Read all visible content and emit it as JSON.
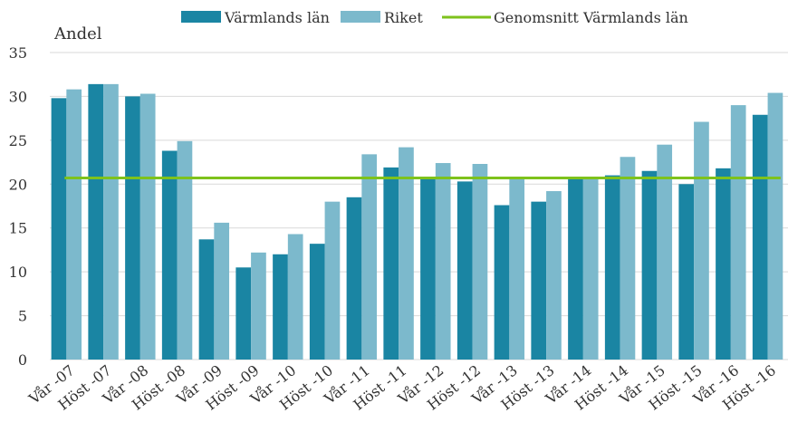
{
  "chart_data": {
    "type": "bar",
    "y_label": "Andel",
    "categories": [
      "Vår -07",
      "Höst -07",
      "Vår -08",
      "Höst -08",
      "Vår -09",
      "Höst -09",
      "Vår -10",
      "Höst -10",
      "Vår -11",
      "Höst -11",
      "Vår -12",
      "Höst -12",
      "Vår -13",
      "Höst -13",
      "Vår -14",
      "Höst -14",
      "Vår -15",
      "Höst -15",
      "Vår -16",
      "Höst -16"
    ],
    "series": [
      {
        "name": "Värmlands län",
        "color": "#1a85a3",
        "values": [
          29.8,
          31.4,
          30.0,
          23.8,
          13.7,
          10.5,
          12.0,
          13.2,
          18.5,
          21.9,
          20.8,
          20.3,
          17.6,
          18.0,
          20.7,
          21.0,
          21.5,
          20.0,
          21.8,
          27.9
        ]
      },
      {
        "name": "Riket",
        "color": "#7cb9cc",
        "values": [
          30.8,
          31.4,
          30.3,
          24.9,
          15.6,
          12.2,
          14.3,
          18.0,
          23.4,
          24.2,
          22.4,
          22.3,
          20.8,
          19.2,
          20.7,
          23.1,
          24.5,
          27.1,
          29.0,
          30.4
        ]
      }
    ],
    "average": {
      "name": "Genomsnitt Värmlands län",
      "color": "#7ec21c",
      "value": 20.7
    },
    "ylim": [
      0,
      35
    ],
    "yticks": [
      0,
      5,
      10,
      15,
      20,
      25,
      30,
      35
    ],
    "grid": true
  }
}
